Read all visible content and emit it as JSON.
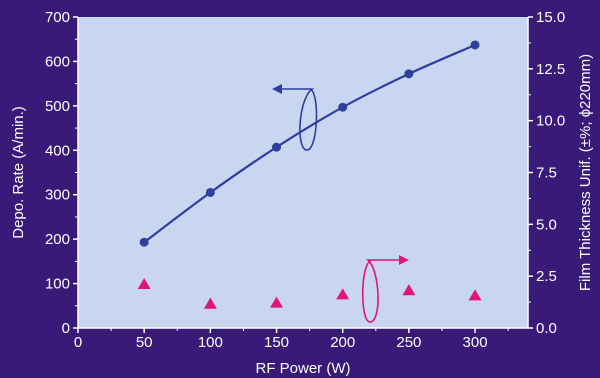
{
  "colors": {
    "background": "#3a1a78",
    "plot_area": "#c8d6f0",
    "rate_series": "#2e3f9c",
    "uniformity_series": "#e0157a",
    "axis_text": "#ffffff"
  },
  "chart_data": {
    "type": "scatter",
    "title": "",
    "xlabel": "RF Power (W)",
    "ylabel": "Depo. Rate (A/min.)",
    "y2label": "Film Thickness Unif. (±%; ϕ220mm)",
    "xlim": [
      0,
      340
    ],
    "ylim": [
      0,
      700
    ],
    "y2lim": [
      0,
      15
    ],
    "x_ticks": [
      0,
      50,
      100,
      150,
      200,
      250,
      300
    ],
    "y_ticks": [
      0,
      100,
      200,
      300,
      400,
      500,
      600,
      700
    ],
    "y2_ticks": [
      "0.0",
      "2.5",
      "5.0",
      "7.5",
      "10.0",
      "12.5",
      "15.0"
    ],
    "grid": false,
    "series": [
      {
        "axis": "left",
        "marker": "circle",
        "line": true,
        "x": [
          50,
          100,
          150,
          200,
          250,
          300
        ],
        "y": [
          193,
          305,
          407,
          497,
          572,
          637
        ]
      },
      {
        "axis": "right",
        "marker": "triangle",
        "line": false,
        "x": [
          50,
          100,
          150,
          200,
          250,
          300
        ],
        "y": [
          2.1,
          1.15,
          1.2,
          1.6,
          1.8,
          1.55
        ]
      }
    ],
    "annotations": [
      {
        "type": "arrow-left",
        "points_to_axis": "left",
        "near_series": 0
      },
      {
        "type": "arrow-right",
        "points_to_axis": "right",
        "near_series": 1
      }
    ]
  }
}
